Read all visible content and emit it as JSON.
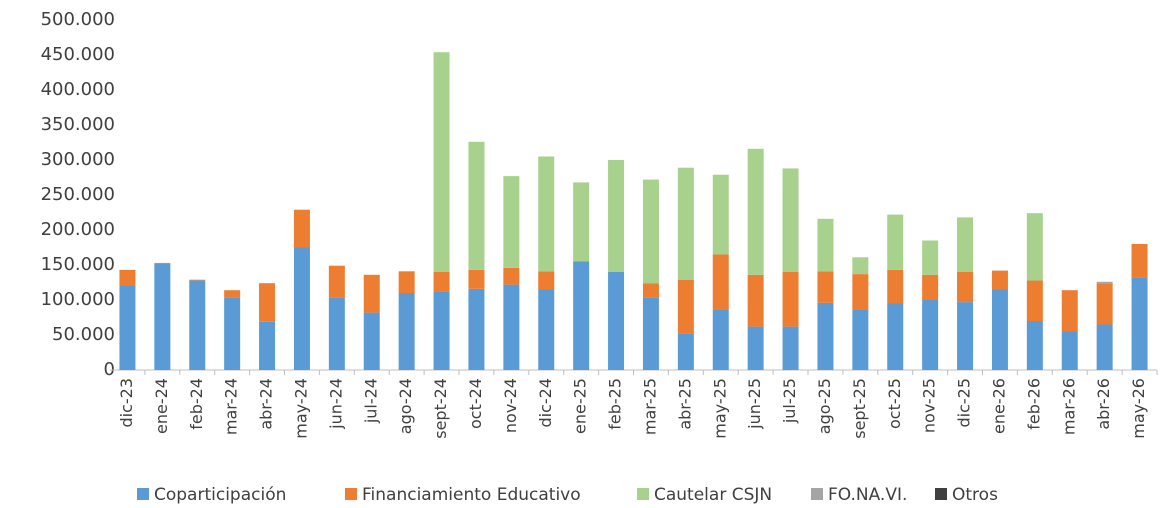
{
  "chart_data": {
    "type": "bar",
    "stacked": true,
    "categories": [
      "dic-23",
      "ene-24",
      "feb-24",
      "mar-24",
      "abr-24",
      "may-24",
      "jun-24",
      "jul-24",
      "ago-24",
      "sept-24",
      "oct-24",
      "nov-24",
      "dic-24",
      "ene-25",
      "feb-25",
      "mar-25",
      "abr-25",
      "may-25",
      "jun-25",
      "jul-25",
      "ago-25",
      "sept-25",
      "oct-25",
      "nov-25",
      "dic-25",
      "ene-26",
      "feb-26",
      "mar-26",
      "abr-26",
      "may-26"
    ],
    "series": [
      {
        "name": "Coparticipación",
        "color": "#5b9bd5",
        "values": [
          120000,
          152000,
          128000,
          103000,
          69000,
          175000,
          104000,
          82000,
          110000,
          112000,
          116000,
          122000,
          115000,
          155000,
          140000,
          103000,
          52000,
          87000,
          62000,
          62000,
          96000,
          87000,
          95000,
          100000,
          97000,
          115000,
          70000,
          55000,
          65000,
          132000
        ]
      },
      {
        "name": "Financiamiento Educativo",
        "color": "#ed7d31",
        "values": [
          23000,
          1000,
          1000,
          11000,
          55000,
          54000,
          45000,
          54000,
          31000,
          28000,
          27000,
          24000,
          26000,
          0,
          0,
          21000,
          77000,
          78000,
          74000,
          78000,
          45000,
          50000,
          48000,
          36000,
          43000,
          27000,
          58000,
          59000,
          59000,
          48000
        ]
      },
      {
        "name": "Cautelar CSJN",
        "color": "#a9d18e",
        "values": [
          0,
          0,
          0,
          0,
          0,
          0,
          0,
          0,
          0,
          314000,
          183000,
          131000,
          164000,
          113000,
          160000,
          148000,
          160000,
          114000,
          180000,
          148000,
          75000,
          24000,
          79000,
          49000,
          78000,
          0,
          96000,
          0,
          0,
          0
        ]
      },
      {
        "name": "FO.NA.VI.",
        "color": "#a5a5a5",
        "values": [
          0,
          0,
          0,
          0,
          0,
          0,
          0,
          0,
          0,
          0,
          0,
          0,
          0,
          0,
          0,
          0,
          0,
          0,
          0,
          0,
          0,
          0,
          0,
          0,
          0,
          0,
          0,
          0,
          2000,
          0
        ]
      },
      {
        "name": "Otros",
        "color": "#404040",
        "values": [
          0,
          0,
          0,
          0,
          0,
          0,
          0,
          0,
          0,
          0,
          0,
          0,
          0,
          0,
          0,
          0,
          0,
          0,
          0,
          0,
          0,
          0,
          0,
          0,
          0,
          0,
          0,
          0,
          0,
          0
        ]
      }
    ],
    "ylim": [
      0,
      500000
    ],
    "yticks": [
      0,
      {
        "value": 50000,
        "label": "50.000"
      },
      {
        "value": 100000,
        "label": "100.000"
      },
      {
        "value": 150000,
        "label": "150.000"
      },
      {
        "value": 200000,
        "label": "200.000"
      },
      {
        "value": 250000,
        "label": "250.000"
      },
      {
        "value": 300000,
        "label": "300.000"
      },
      {
        "value": 350000,
        "label": "350.000"
      },
      {
        "value": 400000,
        "label": "400.000"
      },
      {
        "value": 450000,
        "label": "450.000"
      },
      {
        "value": {
          "value": 500000,
          "label": "500.000"
        },
        "label": "500.000"
      }
    ],
    "legend": "bottom"
  }
}
